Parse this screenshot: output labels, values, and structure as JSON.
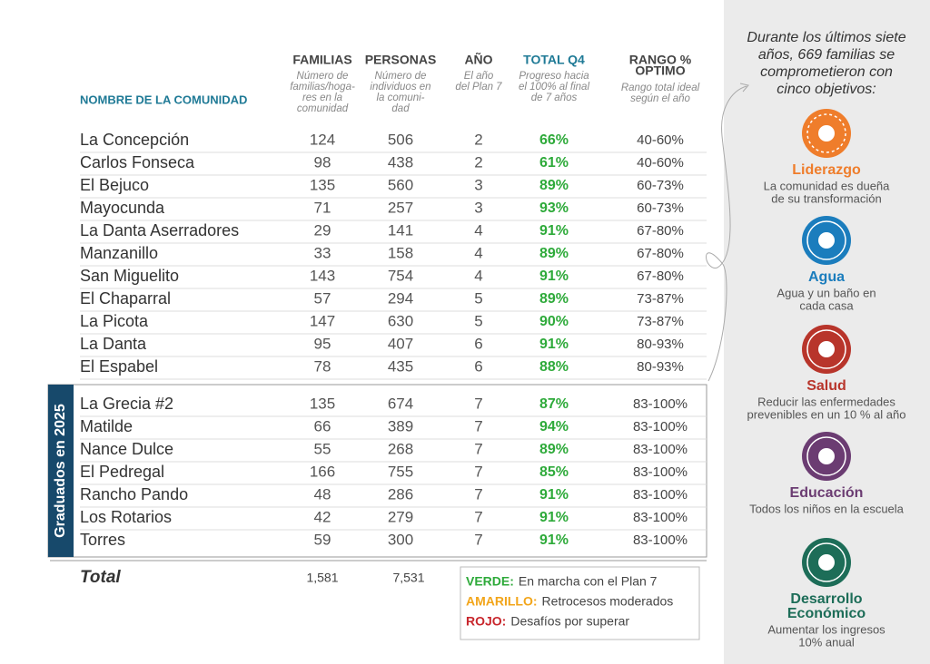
{
  "table": {
    "headers": [
      {
        "title": [
          "NOMBRE DE LA COMUNIDAD"
        ],
        "note": []
      },
      {
        "title": [
          "FAMILIAS"
        ],
        "note": [
          "Número de",
          "familias/hoga-",
          "res en la",
          "comunidad"
        ]
      },
      {
        "title": [
          "PERSONAS"
        ],
        "note": [
          "Número de",
          "individuos en",
          "la comuni-",
          "dad"
        ]
      },
      {
        "title": [
          "AÑO"
        ],
        "note": [
          "El año",
          "del Plan 7"
        ]
      },
      {
        "title": [
          "TOTAL Q4"
        ],
        "note": [
          "Progreso hacia",
          "el 100% al final",
          "de 7 años"
        ]
      },
      {
        "title": [
          "RANGO %",
          "OPTIMO"
        ],
        "note": [
          "Rango total ideal",
          "según el año"
        ]
      }
    ],
    "rows": [
      [
        "La Concepción",
        124,
        506,
        2,
        "66%",
        "40-60%"
      ],
      [
        "Carlos Fonseca",
        98,
        438,
        2,
        "61%",
        "40-60%"
      ],
      [
        "El Bejuco",
        135,
        560,
        3,
        "89%",
        "60-73%"
      ],
      [
        "Mayocunda",
        71,
        257,
        3,
        "93%",
        "60-73%"
      ],
      [
        "La Danta Aserradores",
        29,
        141,
        4,
        "91%",
        "67-80%"
      ],
      [
        "Manzanillo",
        33,
        158,
        4,
        "89%",
        "67-80%"
      ],
      [
        "San Miguelito",
        143,
        754,
        4,
        "91%",
        "67-80%"
      ],
      [
        "El Chaparral",
        57,
        294,
        5,
        "89%",
        "73-87%"
      ],
      [
        "La Picota",
        147,
        630,
        5,
        "90%",
        "73-87%"
      ],
      [
        "La Danta",
        95,
        407,
        6,
        "91%",
        "80-93%"
      ],
      [
        "El Espabel",
        78,
        435,
        6,
        "88%",
        "80-93%"
      ]
    ],
    "graduated_label": "Graduados en 2025",
    "graduated_rows": [
      [
        "La Grecia #2",
        135,
        674,
        7,
        "87%",
        "83-100%"
      ],
      [
        "Matilde",
        66,
        389,
        7,
        "94%",
        "83-100%"
      ],
      [
        "Nance Dulce",
        55,
        268,
        7,
        "89%",
        "83-100%"
      ],
      [
        "El Pedregal",
        166,
        755,
        7,
        "85%",
        "83-100%"
      ],
      [
        "Rancho Pando",
        48,
        286,
        7,
        "91%",
        "83-100%"
      ],
      [
        "Los Rotarios",
        42,
        279,
        7,
        "91%",
        "83-100%"
      ],
      [
        "Torres",
        59,
        300,
        7,
        "91%",
        "83-100%"
      ]
    ],
    "total": {
      "label": "Total",
      "familias": "1,581",
      "personas": "7,531"
    }
  },
  "legend": [
    {
      "key": "VERDE:",
      "text": "En marcha con el Plan 7",
      "color": "#2eaa3a"
    },
    {
      "key": "AMARILLO:",
      "text": "Retrocesos moderados",
      "color": "#f2a51a"
    },
    {
      "key": "ROJO:",
      "text": "Desafíos por superar",
      "color": "#c8262c"
    }
  ],
  "sidebar": {
    "intro": [
      "Durante los últimos siete",
      "años, 669 familias se",
      "comprometieron con",
      "cinco objetivos:"
    ],
    "goals": [
      {
        "title": [
          "Liderazgo"
        ],
        "text": [
          "La comunidad es dueña",
          "de su transformación"
        ],
        "color": "#ef7d2b"
      },
      {
        "title": [
          "Agua"
        ],
        "text": [
          "Agua y un baño en",
          "cada casa"
        ],
        "color": "#1b7dbd"
      },
      {
        "title": [
          "Salud"
        ],
        "text": [
          "Reducir las enfermedades",
          "prevenibles en un 10 % al año"
        ],
        "color": "#b8352b"
      },
      {
        "title": [
          "Educación"
        ],
        "text": [
          "Todos los niños en la escuela"
        ],
        "color": "#6b3c72"
      },
      {
        "title": [
          "Desarrollo",
          "Económico"
        ],
        "text": [
          "Aumentar los ingresos",
          "10% anual"
        ],
        "color": "#1d6d58"
      }
    ]
  }
}
